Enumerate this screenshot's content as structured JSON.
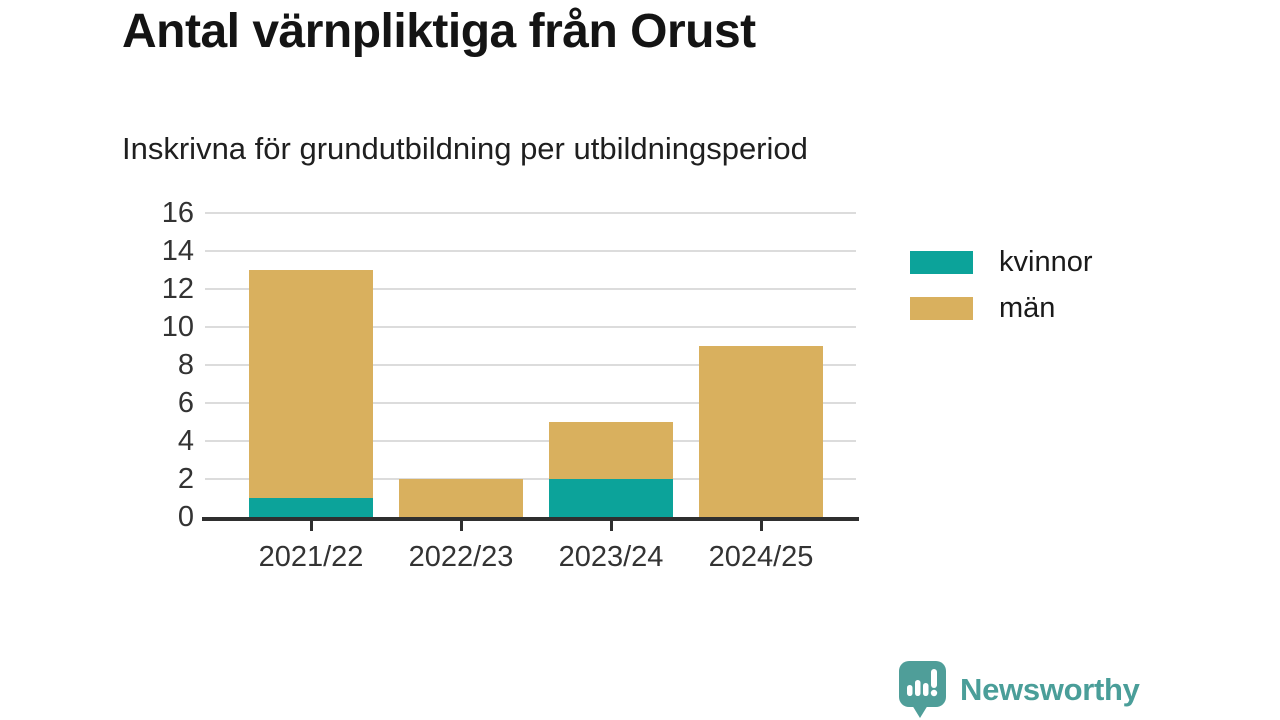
{
  "header": {
    "title": "Antal värnpliktiga från Orust",
    "subtitle": "Inskrivna för grundutbildning per utbildningsperiod"
  },
  "chart_data": {
    "type": "bar",
    "stacked": true,
    "title": "Antal värnpliktiga från Orust",
    "subtitle": "Inskrivna för grundutbildning per utbildningsperiod",
    "categories": [
      "2021/22",
      "2022/23",
      "2023/24",
      "2024/25"
    ],
    "series": [
      {
        "name": "kvinnor",
        "color": "#0ca39a",
        "values": [
          1,
          0,
          2,
          0
        ]
      },
      {
        "name": "män",
        "color": "#d9b05e",
        "values": [
          12,
          2,
          3,
          9
        ]
      }
    ],
    "stack_totals": [
      13,
      2,
      5,
      9
    ],
    "xlabel": "",
    "ylabel": "",
    "ylim": [
      0,
      16
    ],
    "yticks": [
      0,
      2,
      4,
      6,
      8,
      10,
      12,
      14,
      16
    ],
    "grid": true,
    "legend_position": "right-top"
  },
  "branding": {
    "name": "Newsworthy",
    "color": "#4a9e99"
  },
  "colors": {
    "kvinnor": "#0ca39a",
    "man": "#d9b05e",
    "brand": "#4a9e99",
    "heading_text": "#141414",
    "axis_text": "#333333",
    "gridline": "#dcdcdc",
    "axis_line": "#2f2f2f",
    "background": "#ffffff"
  }
}
